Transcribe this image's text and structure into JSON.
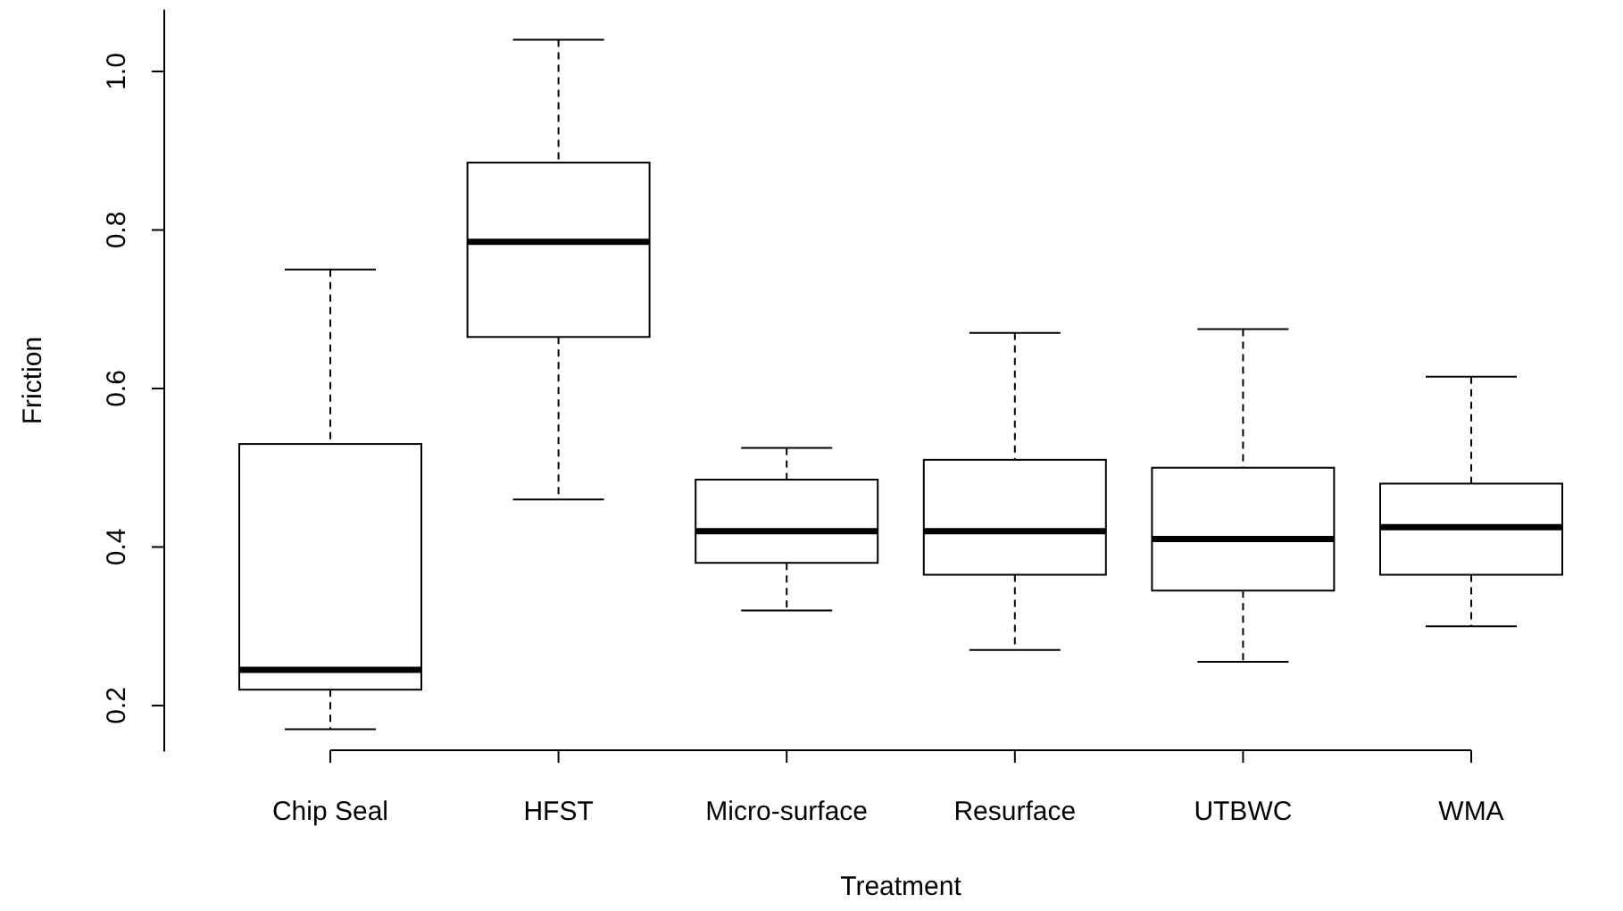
{
  "chart_data": {
    "type": "box",
    "xlabel": "Treatment",
    "ylabel": "Friction",
    "categories": [
      "Chip Seal",
      "HFST",
      "Micro-surface",
      "Resurface",
      "UTBWC",
      "WMA"
    ],
    "boxes": [
      {
        "low": 0.17,
        "q1": 0.22,
        "median": 0.245,
        "q3": 0.53,
        "high": 0.75
      },
      {
        "low": 0.46,
        "q1": 0.665,
        "median": 0.785,
        "q3": 0.885,
        "high": 1.04
      },
      {
        "low": 0.32,
        "q1": 0.38,
        "median": 0.42,
        "q3": 0.485,
        "high": 0.525
      },
      {
        "low": 0.27,
        "q1": 0.365,
        "median": 0.42,
        "q3": 0.51,
        "high": 0.67
      },
      {
        "low": 0.255,
        "q1": 0.345,
        "median": 0.41,
        "q3": 0.5,
        "high": 0.675
      },
      {
        "low": 0.3,
        "q1": 0.365,
        "median": 0.425,
        "q3": 0.48,
        "high": 0.615
      }
    ],
    "ylim": [
      0.142,
      1.078
    ],
    "yticks": [
      0.2,
      0.4,
      0.6,
      0.8,
      {
        "value": 1,
        "label": "1.0"
      }
    ]
  }
}
